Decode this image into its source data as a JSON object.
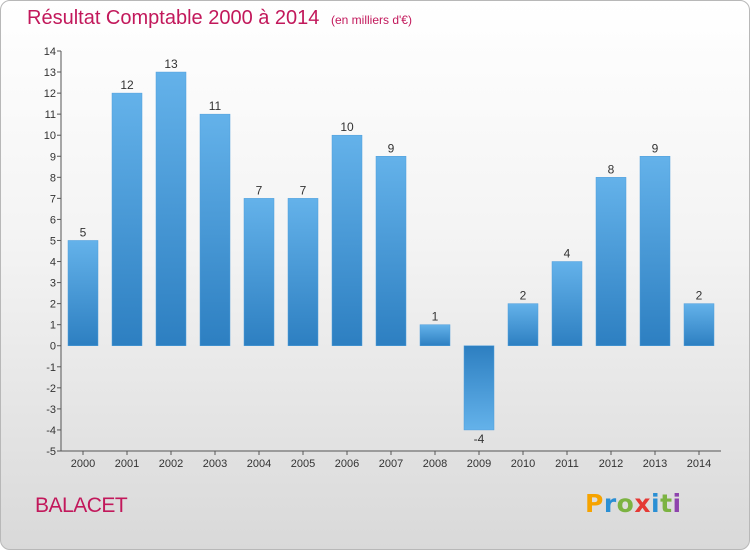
{
  "chart_data": {
    "type": "bar",
    "title": "Résultat Comptable 2000 à 2014",
    "subtitle": "(en milliers d'€)",
    "categories": [
      "2000",
      "2001",
      "2002",
      "2003",
      "2004",
      "2005",
      "2006",
      "2007",
      "2008",
      "2009",
      "2010",
      "2011",
      "2012",
      "2013",
      "2014"
    ],
    "values": [
      5,
      12,
      13,
      11,
      7,
      7,
      10,
      9,
      1,
      -4,
      2,
      4,
      8,
      9,
      2
    ],
    "ylim": [
      -5,
      14
    ],
    "yticks": [
      -5,
      -4,
      -3,
      -2,
      -1,
      0,
      1,
      2,
      3,
      4,
      5,
      6,
      7,
      8,
      9,
      10,
      11,
      12,
      13,
      14
    ],
    "grid": false,
    "xlabel": "",
    "ylabel": ""
  },
  "commune": "BALACET",
  "logo": {
    "letters": [
      "P",
      "r",
      "o",
      "x",
      "i",
      "t",
      "i"
    ]
  },
  "colors": {
    "title": "#c2185b",
    "bar_light": "#64b2ea",
    "bar_dark": "#2d7fc1",
    "axis": "#555555",
    "text": "#333333"
  }
}
